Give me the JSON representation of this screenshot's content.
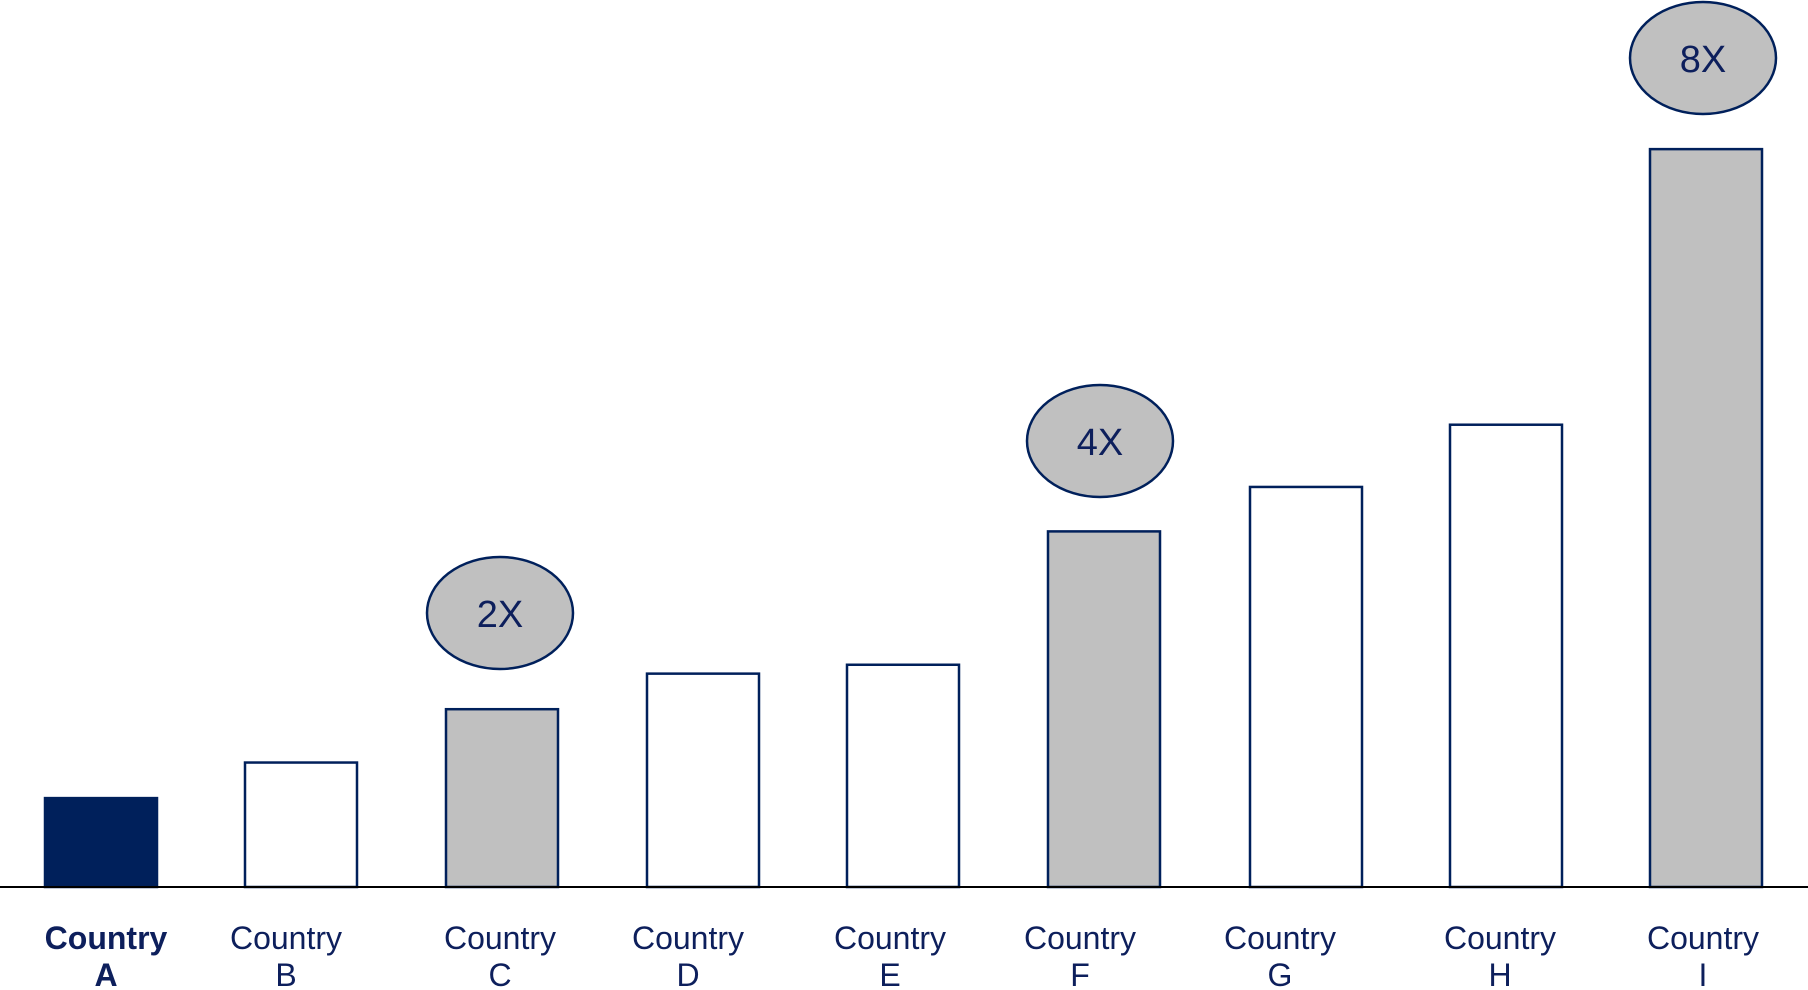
{
  "chart_data": {
    "type": "bar",
    "title": "",
    "xlabel": "",
    "ylabel": "",
    "categories": [
      [
        "Country",
        "A"
      ],
      [
        "Country",
        "B"
      ],
      [
        "Country",
        "C"
      ],
      [
        "Country",
        "D"
      ],
      [
        "Country",
        "E"
      ],
      [
        "Country",
        "F"
      ],
      [
        "Country",
        "G"
      ],
      [
        "Country",
        "H"
      ],
      [
        "Country",
        "I"
      ]
    ],
    "values": [
      1.0,
      1.4,
      2.0,
      2.4,
      2.5,
      4.0,
      4.5,
      5.2,
      8.3
    ],
    "bar_styles": [
      "highlight",
      "outline",
      "grey",
      "outline",
      "outline",
      "grey",
      "outline",
      "outline",
      "grey"
    ],
    "annotations": [
      {
        "category_index": 2,
        "label": "2X"
      },
      {
        "category_index": 5,
        "label": "4X"
      },
      {
        "category_index": 8,
        "label": "8X"
      }
    ],
    "ylim": [
      0,
      9.0
    ],
    "grid": false,
    "legend": "none",
    "colors": {
      "highlight": "#00205b",
      "grey": "#c0c0c0",
      "outline": "#00205b",
      "text": "#0d1f5c",
      "axis": "#000000"
    }
  }
}
